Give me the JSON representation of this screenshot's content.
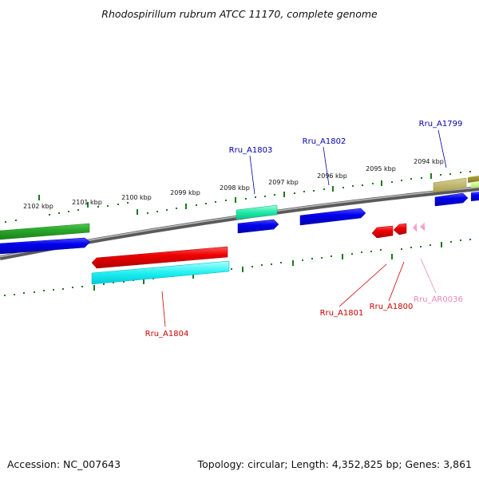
{
  "title": "Rhodospirillum rubrum ATCC 11170, complete genome",
  "footer": {
    "accession": "Accession: NC_007643",
    "topology": "Topology: circular; Length: 4,352,825 bp; Genes: 3,861"
  },
  "colors": {
    "backbone": "#777777",
    "tick": "#1a7a1a",
    "label_blue": "#0000aa",
    "label_red": "#cc0000",
    "label_pink": "#ee88bb"
  },
  "kbp_labels": [
    "2102 kbp",
    "2101 kbp",
    "2100 kbp",
    "2099 kbp",
    "2098 kbp",
    "2097 kbp",
    "2096 kbp",
    "2095 kbp",
    "2094 kbp"
  ],
  "gene_labels": [
    {
      "id": "Rru_A1803",
      "color": "blue"
    },
    {
      "id": "Rru_A1802",
      "color": "blue"
    },
    {
      "id": "Rru_A1799",
      "color": "blue"
    },
    {
      "id": "Rru_A1804",
      "color": "red"
    },
    {
      "id": "Rru_A1801",
      "color": "red"
    },
    {
      "id": "Rru_A1800",
      "color": "red"
    },
    {
      "id": "Rru_AR0036",
      "color": "pink"
    }
  ]
}
